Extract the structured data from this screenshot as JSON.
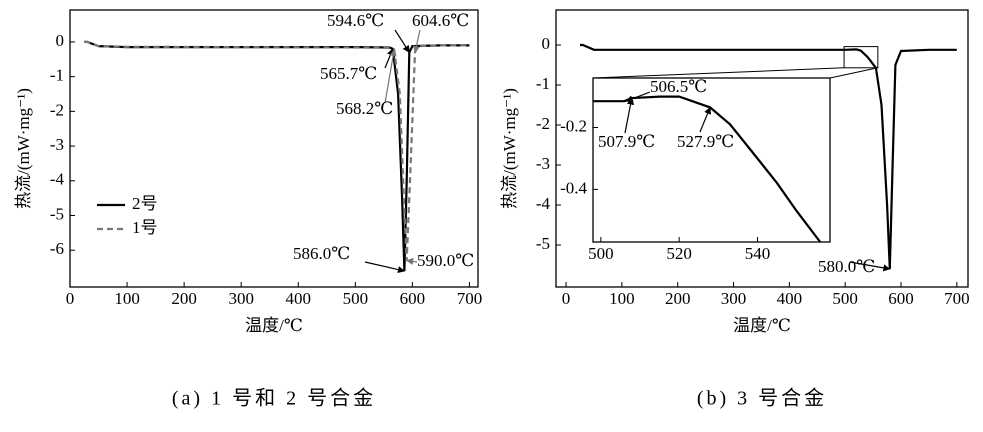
{
  "chart_data": [
    {
      "type": "line",
      "caption": "(a) 1 号和 2 号合金",
      "xlabel": "温度/℃",
      "ylabel": "热流/(mW·mg⁻¹)",
      "xlim": [
        0,
        715
      ],
      "ylim": [
        -7.06,
        0.92
      ],
      "xticks": [
        0,
        100,
        200,
        300,
        400,
        500,
        600,
        700
      ],
      "yticks": [
        0,
        -1,
        -2,
        -3,
        -4,
        -5,
        -6
      ],
      "grid": false,
      "legend": "lower left",
      "series": [
        {
          "name": "2号",
          "color": "#000000",
          "dash": "solid",
          "x": [
            25,
            30,
            50,
            100,
            300,
            500,
            560,
            565.7,
            575,
            582,
            586,
            590,
            594.6,
            600,
            650,
            700
          ],
          "values": [
            0,
            0,
            -0.12,
            -0.15,
            -0.15,
            -0.15,
            -0.16,
            -0.2,
            -1.5,
            -4.5,
            -6.6,
            -4,
            -0.3,
            -0.12,
            -0.1,
            -0.1
          ]
        },
        {
          "name": "1号",
          "color": "#777777",
          "dash": "dashed",
          "x": [
            25,
            30,
            50,
            100,
            300,
            500,
            560,
            568.2,
            578,
            585,
            590,
            597,
            604.6,
            610,
            650,
            700
          ],
          "values": [
            0,
            0,
            -0.12,
            -0.14,
            -0.15,
            -0.16,
            -0.17,
            -0.22,
            -1.5,
            -4.5,
            -6.3,
            -3.5,
            -0.3,
            -0.12,
            -0.1,
            -0.1
          ]
        }
      ],
      "annotations": [
        {
          "text": "565.7℃",
          "x": 565.7,
          "y": -0.2,
          "color": "#000000"
        },
        {
          "text": "568.2℃",
          "x": 568.2,
          "y": -0.22,
          "color": "#777777"
        },
        {
          "text": "594.6℃",
          "x": 594.6,
          "y": -0.3,
          "color": "#000000"
        },
        {
          "text": "604.6℃",
          "x": 604.6,
          "y": -0.3,
          "color": "#777777"
        },
        {
          "text": "586.0℃",
          "x": 586,
          "y": -6.6,
          "color": "#000000"
        },
        {
          "text": "590.0℃",
          "x": 590,
          "y": -6.3,
          "color": "#777777"
        }
      ]
    },
    {
      "type": "line",
      "caption": "(b) 3 号合金",
      "xlabel": "温度/℃",
      "ylabel": "热流/(mW·mg⁻¹)",
      "xlim": [
        -18,
        720
      ],
      "ylim": [
        -6.05,
        0.875
      ],
      "xticks": [
        0,
        100,
        200,
        300,
        400,
        500,
        600,
        700
      ],
      "yticks": [
        0,
        -1,
        -2,
        -3,
        -4,
        -5
      ],
      "grid": false,
      "series": [
        {
          "name": "3号",
          "color": "#000000",
          "dash": "solid",
          "x": [
            25,
            30,
            50,
            100,
            300,
            500,
            520,
            527.9,
            540,
            555,
            565,
            575,
            580,
            585,
            590,
            600,
            650,
            700
          ],
          "values": [
            0,
            0,
            -0.12,
            -0.12,
            -0.12,
            -0.12,
            -0.11,
            -0.14,
            -0.3,
            -0.57,
            -1.5,
            -4,
            -5.6,
            -3,
            -0.5,
            -0.15,
            -0.12,
            -0.12
          ]
        }
      ],
      "annotations": [
        {
          "text": "580.0℃",
          "x": 580,
          "y": -5.6,
          "color": "#000000"
        }
      ],
      "inset": {
        "xlim": [
          498,
          558.5
        ],
        "ylim": [
          -0.57,
          -0.04
        ],
        "xticks": [
          500,
          520,
          540
        ],
        "yticks": [
          -0.2,
          -0.4
        ],
        "series": [
          {
            "color": "#000000",
            "dash": "solid",
            "x": [
              498,
              500,
              506,
              507.9,
              515,
              520,
              527.9,
              533,
              540,
              545,
              550,
              556
            ],
            "values": [
              -0.115,
              -0.115,
              -0.115,
              -0.105,
              -0.1,
              -0.1,
              -0.135,
              -0.19,
              -0.3,
              -0.38,
              -0.47,
              -0.57
            ]
          }
        ],
        "annotations": [
          {
            "text": "506.5℃",
            "x": 506.5,
            "y": -0.115,
            "color": "#000000"
          },
          {
            "text": "507.9℃",
            "x": 507.9,
            "y": -0.105,
            "color": "#000000"
          },
          {
            "text": "527.9℃",
            "x": 527.9,
            "y": -0.135,
            "color": "#000000"
          }
        ]
      }
    }
  ]
}
